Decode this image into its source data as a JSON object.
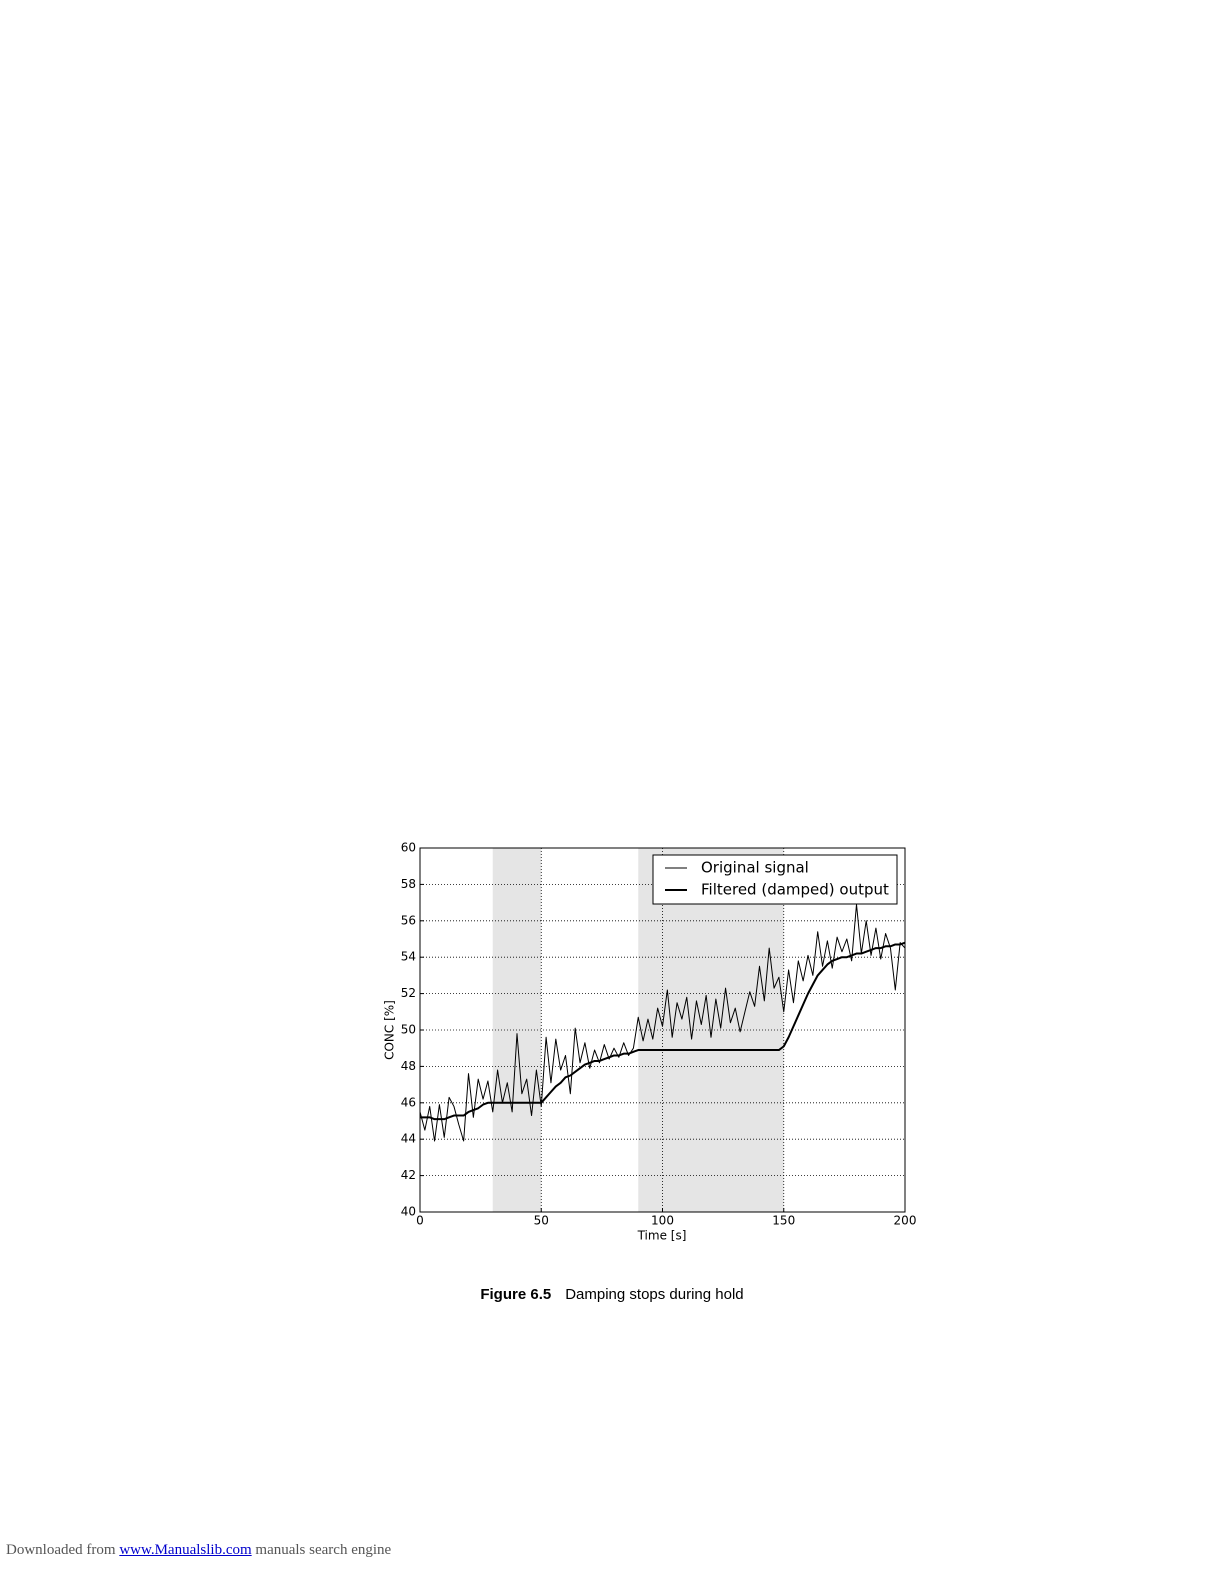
{
  "chart_data": {
    "type": "line",
    "xlabel": "Time [s]",
    "ylabel": "CONC [%]",
    "x": [
      0,
      2,
      4,
      6,
      8,
      10,
      12,
      14,
      16,
      18,
      20,
      22,
      24,
      26,
      28,
      30,
      32,
      34,
      36,
      38,
      40,
      42,
      44,
      46,
      48,
      50,
      52,
      54,
      56,
      58,
      60,
      62,
      64,
      66,
      68,
      70,
      72,
      74,
      76,
      78,
      80,
      82,
      84,
      86,
      88,
      90,
      92,
      94,
      96,
      98,
      100,
      102,
      104,
      106,
      108,
      110,
      112,
      114,
      116,
      118,
      120,
      122,
      124,
      126,
      128,
      130,
      132,
      134,
      136,
      138,
      140,
      142,
      144,
      146,
      148,
      150,
      152,
      154,
      156,
      158,
      160,
      162,
      164,
      166,
      168,
      170,
      172,
      174,
      176,
      178,
      180,
      182,
      184,
      186,
      188,
      190,
      192,
      194,
      196,
      198,
      200
    ],
    "series": [
      {
        "name": "Original signal",
        "color": "#000000",
        "line_width": 1,
        "values": [
          45.5,
          44.5,
          45.8,
          43.9,
          45.9,
          44.1,
          46.3,
          45.8,
          44.8,
          43.9,
          47.6,
          45.2,
          47.3,
          46.2,
          47.2,
          45.5,
          47.8,
          46.0,
          47.1,
          45.5,
          49.8,
          46.5,
          47.3,
          45.3,
          47.8,
          45.8,
          49.6,
          47.1,
          49.5,
          47.8,
          48.6,
          46.5,
          50.1,
          48.2,
          49.3,
          47.9,
          48.9,
          48.2,
          49.2,
          48.4,
          49.0,
          48.5,
          49.3,
          48.6,
          49.0,
          50.7,
          49.4,
          50.6,
          49.5,
          51.2,
          50.2,
          52.2,
          49.6,
          51.5,
          50.6,
          51.8,
          49.5,
          51.6,
          50.3,
          51.9,
          49.6,
          51.7,
          50.1,
          52.3,
          50.4,
          51.2,
          49.9,
          51.0,
          52.1,
          51.3,
          53.5,
          51.6,
          54.5,
          52.3,
          52.9,
          51.0,
          53.3,
          51.5,
          53.8,
          52.7,
          54.1,
          53.0,
          55.4,
          53.5,
          54.9,
          53.4,
          55.1,
          54.3,
          55.0,
          53.8,
          56.9,
          54.2,
          56.0,
          54.1,
          55.6,
          53.9,
          55.3,
          54.5,
          52.2,
          54.8,
          54.5
        ]
      },
      {
        "name": "Filtered (damped) output",
        "color": "#000000",
        "line_width": 2,
        "values": [
          45.2,
          45.2,
          45.2,
          45.1,
          45.1,
          45.1,
          45.2,
          45.3,
          45.3,
          45.3,
          45.5,
          45.6,
          45.7,
          45.9,
          46.0,
          46.0,
          46.0,
          46.0,
          46.0,
          46.0,
          46.0,
          46.0,
          46.0,
          46.0,
          46.0,
          46.0,
          46.3,
          46.6,
          46.9,
          47.1,
          47.4,
          47.5,
          47.7,
          47.9,
          48.1,
          48.2,
          48.3,
          48.3,
          48.4,
          48.5,
          48.6,
          48.6,
          48.7,
          48.7,
          48.8,
          48.9,
          48.9,
          48.9,
          48.9,
          48.9,
          48.9,
          48.9,
          48.9,
          48.9,
          48.9,
          48.9,
          48.9,
          48.9,
          48.9,
          48.9,
          48.9,
          48.9,
          48.9,
          48.9,
          48.9,
          48.9,
          48.9,
          48.9,
          48.9,
          48.9,
          48.9,
          48.9,
          48.9,
          48.9,
          48.9,
          49.1,
          49.6,
          50.2,
          50.8,
          51.4,
          52.0,
          52.5,
          53.0,
          53.3,
          53.6,
          53.8,
          53.9,
          54.0,
          54.0,
          54.1,
          54.2,
          54.2,
          54.3,
          54.4,
          54.5,
          54.5,
          54.6,
          54.6,
          54.7,
          54.7,
          54.8
        ]
      }
    ],
    "shaded_regions": [
      [
        30,
        50
      ],
      [
        90,
        150
      ]
    ],
    "shade_color": "#e5e5e5",
    "xlim": [
      0,
      200
    ],
    "xticks": [
      0,
      50,
      100,
      150,
      200
    ],
    "ylim": [
      40,
      60
    ],
    "yticks": [
      40,
      42,
      44,
      46,
      48,
      50,
      52,
      54,
      56,
      58,
      60
    ],
    "grid": true,
    "legend": "upper right"
  },
  "caption": {
    "label": "Figure 6.5",
    "text": "Damping stops during hold"
  },
  "footer": {
    "prefix": "Downloaded from",
    "link": "www.Manualslib.com",
    "suffix": "manuals search engine"
  }
}
